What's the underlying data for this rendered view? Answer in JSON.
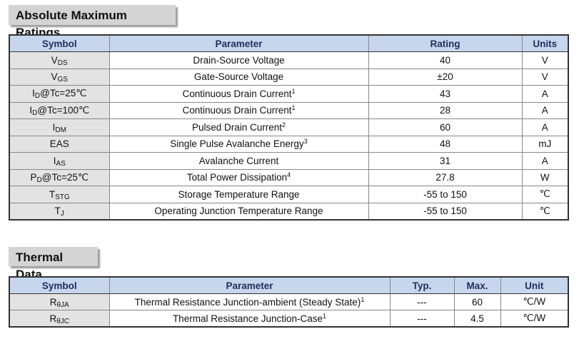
{
  "amr": {
    "title": "Absolute Maximum Ratings",
    "headers": {
      "symbol": "Symbol",
      "parameter": "Parameter",
      "rating": "Rating",
      "units": "Units"
    },
    "rows": [
      {
        "sym_main": "V",
        "sym_sub": "DS",
        "sym_rest": "",
        "parameter": "Drain-Source Voltage",
        "note": "",
        "rating": "40",
        "units": "V"
      },
      {
        "sym_main": "V",
        "sym_sub": "GS",
        "sym_rest": "",
        "parameter": "Gate-Source Voltage",
        "note": "",
        "rating": "±20",
        "units": "V"
      },
      {
        "sym_main": "I",
        "sym_sub": "D",
        "sym_rest": "@Tc=25℃",
        "parameter": "Continuous Drain Current",
        "note": "1",
        "rating": "43",
        "units": "A"
      },
      {
        "sym_main": "I",
        "sym_sub": "D",
        "sym_rest": "@Tc=100℃",
        "parameter": "Continuous Drain Current",
        "note": "1",
        "rating": "28",
        "units": "A"
      },
      {
        "sym_main": "I",
        "sym_sub": "DM",
        "sym_rest": "",
        "parameter": "Pulsed Drain Current",
        "note": "2",
        "rating": "60",
        "units": "A"
      },
      {
        "sym_main": "EAS",
        "sym_sub": "",
        "sym_rest": "",
        "parameter": "Single Pulse Avalanche Energy",
        "note": "3",
        "rating": "48",
        "units": "mJ"
      },
      {
        "sym_main": "I",
        "sym_sub": "AS",
        "sym_rest": "",
        "parameter": "Avalanche Current",
        "note": "",
        "rating": "31",
        "units": "A"
      },
      {
        "sym_main": "P",
        "sym_sub": "D",
        "sym_rest": "@Tc=25℃",
        "parameter": "Total Power Dissipation",
        "note": "4",
        "rating": "27.8",
        "units": "W"
      },
      {
        "sym_main": "T",
        "sym_sub": "STG",
        "sym_rest": "",
        "parameter": "Storage Temperature Range",
        "note": "",
        "rating": "-55 to 150",
        "units": "℃"
      },
      {
        "sym_main": "T",
        "sym_sub": "J",
        "sym_rest": "",
        "parameter": "Operating Junction Temperature Range",
        "note": "",
        "rating": "-55 to 150",
        "units": "℃"
      }
    ]
  },
  "thermal": {
    "title": "Thermal Data",
    "headers": {
      "symbol": "Symbol",
      "parameter": "Parameter",
      "typ": "Typ.",
      "max": "Max.",
      "unit": "Unit"
    },
    "rows": [
      {
        "sym_main": "R",
        "sym_sub": "θJA",
        "parameter": "Thermal Resistance Junction-ambient (Steady State)",
        "note": "1",
        "typ": "---",
        "max": "60",
        "unit": "℃/W"
      },
      {
        "sym_main": "R",
        "sym_sub": "θJC",
        "parameter": "Thermal Resistance Junction-Case",
        "note": "1",
        "typ": "---",
        "max": "4.5",
        "unit": "℃/W"
      }
    ]
  }
}
